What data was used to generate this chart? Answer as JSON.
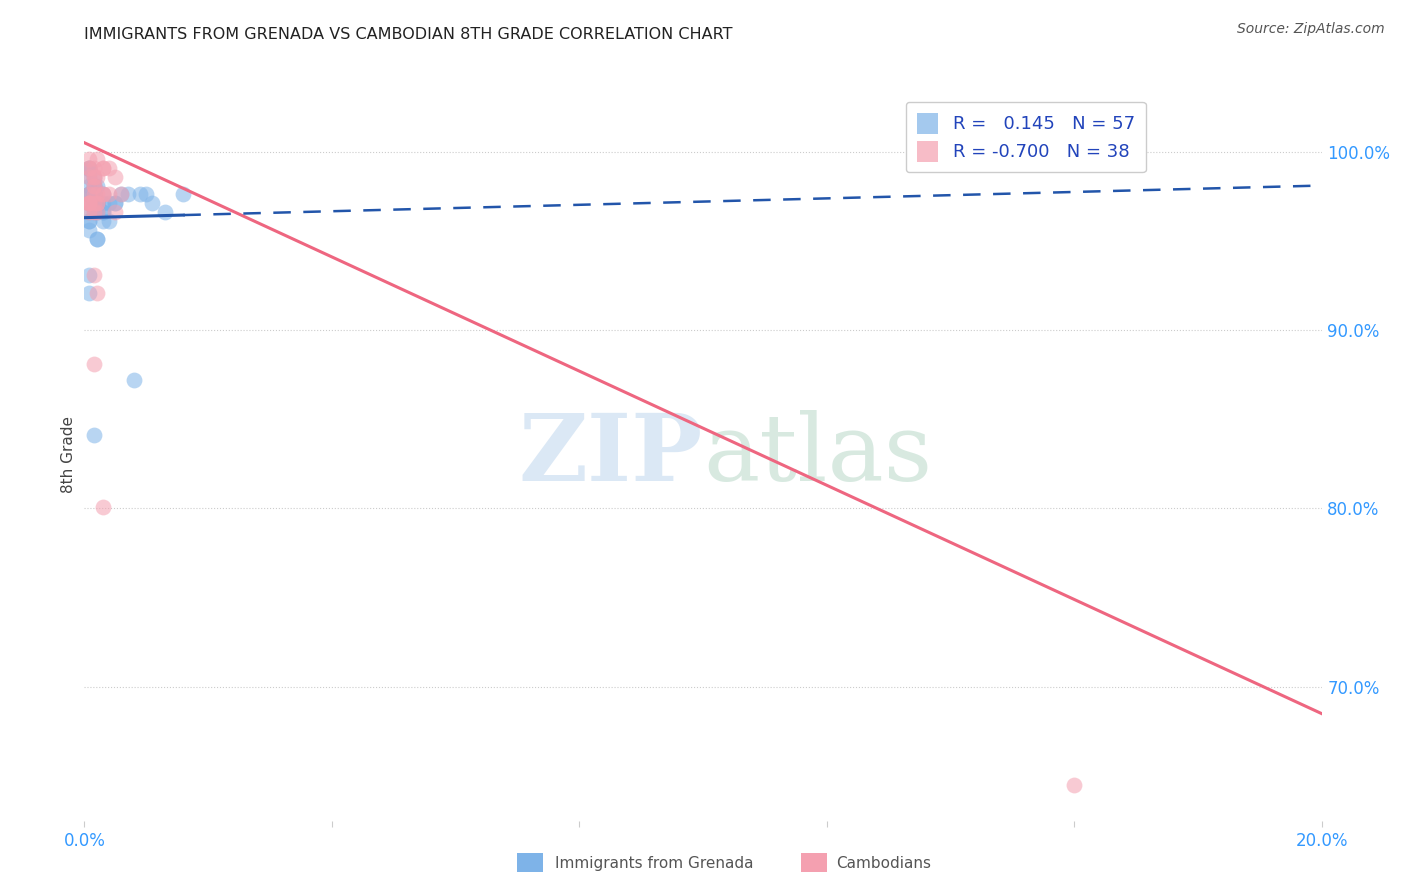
{
  "title": "IMMIGRANTS FROM GRENADA VS CAMBODIAN 8TH GRADE CORRELATION CHART",
  "source": "Source: ZipAtlas.com",
  "ylabel": "8th Grade",
  "ylabel_right_ticks": [
    "100.0%",
    "90.0%",
    "80.0%",
    "70.0%"
  ],
  "ylabel_right_values": [
    1.0,
    0.9,
    0.8,
    0.7
  ],
  "xlim": [
    0.0,
    0.2
  ],
  "ylim": [
    0.625,
    1.035
  ],
  "watermark_zip": "ZIP",
  "watermark_atlas": "atlas",
  "blue_color": "#7EB3E8",
  "pink_color": "#F4A0B0",
  "blue_line_color": "#2255AA",
  "pink_line_color": "#EE6680",
  "blue_R": "0.145",
  "blue_N": "57",
  "pink_R": "-0.700",
  "pink_N": "38",
  "blue_scatter_x": [
    0.0008,
    0.0015,
    0.0008,
    0.002,
    0.0015,
    0.0008,
    0.003,
    0.0015,
    0.002,
    0.0008,
    0.0015,
    0.0008,
    0.002,
    0.0015,
    0.0008,
    0.003,
    0.002,
    0.0015,
    0.0008,
    0.0015,
    0.002,
    0.0008,
    0.0015,
    0.003,
    0.002,
    0.0015,
    0.0008,
    0.004,
    0.0015,
    0.002,
    0.0008,
    0.005,
    0.003,
    0.002,
    0.0015,
    0.0008,
    0.006,
    0.004,
    0.007,
    0.002,
    0.0015,
    0.003,
    0.008,
    0.005,
    0.01,
    0.013,
    0.016,
    0.0008,
    0.0015,
    0.009,
    0.0008,
    0.011,
    0.0008,
    0.0015,
    0.0008,
    0.0015,
    0.002
  ],
  "blue_scatter_y": [
    0.99,
    0.985,
    0.976,
    0.971,
    0.981,
    0.966,
    0.961,
    0.973,
    0.969,
    0.956,
    0.976,
    0.961,
    0.971,
    0.976,
    0.981,
    0.971,
    0.966,
    0.971,
    0.976,
    0.966,
    0.951,
    0.961,
    0.971,
    0.976,
    0.951,
    0.976,
    0.986,
    0.971,
    0.981,
    0.971,
    0.991,
    0.971,
    0.966,
    0.971,
    0.976,
    0.991,
    0.976,
    0.961,
    0.976,
    0.981,
    0.971,
    0.966,
    0.872,
    0.971,
    0.976,
    0.966,
    0.976,
    0.921,
    0.841,
    0.976,
    0.971,
    0.971,
    0.931,
    0.971,
    0.976,
    0.976,
    0.971
  ],
  "pink_scatter_x": [
    0.0008,
    0.0015,
    0.0008,
    0.002,
    0.0015,
    0.0008,
    0.003,
    0.0015,
    0.002,
    0.0008,
    0.0015,
    0.0008,
    0.002,
    0.003,
    0.0015,
    0.0008,
    0.002,
    0.0015,
    0.003,
    0.0008,
    0.002,
    0.0015,
    0.0008,
    0.004,
    0.005,
    0.0015,
    0.002,
    0.003,
    0.0008,
    0.0015,
    0.006,
    0.002,
    0.003,
    0.004,
    0.005,
    0.0015,
    0.16,
    0.0008
  ],
  "pink_scatter_y": [
    0.996,
    0.991,
    0.986,
    0.996,
    0.981,
    0.976,
    0.991,
    0.986,
    0.976,
    0.971,
    0.966,
    0.991,
    0.986,
    0.976,
    0.971,
    0.991,
    0.966,
    0.981,
    0.976,
    0.971,
    0.921,
    0.931,
    0.966,
    0.976,
    0.986,
    0.881,
    0.971,
    0.991,
    0.971,
    0.986,
    0.976,
    0.971,
    0.801,
    0.991,
    0.966,
    0.976,
    0.645,
    0.971
  ],
  "blue_line_x0": 0.0,
  "blue_line_y0": 0.963,
  "blue_line_x1": 0.2,
  "blue_line_y1": 0.981,
  "blue_line_solid_end": 0.016,
  "pink_line_x0": 0.0,
  "pink_line_y0": 1.005,
  "pink_line_x1": 0.2,
  "pink_line_y1": 0.685
}
